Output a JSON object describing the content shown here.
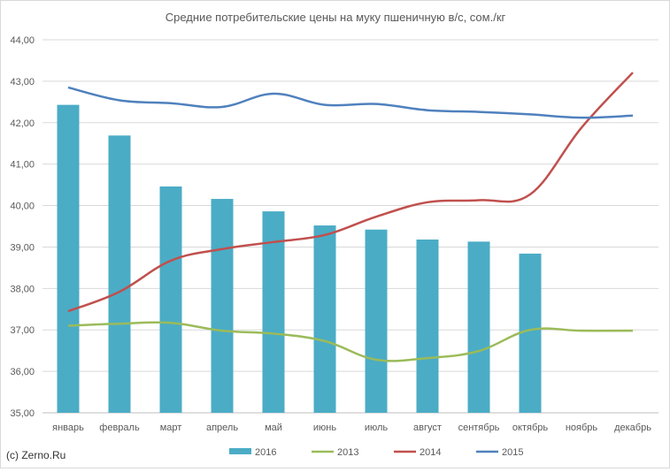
{
  "chart_data": {
    "type": "bar+line",
    "title": "Средние потребительские цены на муку пшеничную в/с, сом./кг",
    "xlabel": "",
    "ylabel": "",
    "categories": [
      "январь",
      "февраль",
      "март",
      "апрель",
      "май",
      "июнь",
      "июль",
      "август",
      "сентябрь",
      "октябрь",
      "ноябрь",
      "декабрь"
    ],
    "ylim": [
      35,
      44
    ],
    "yticks": [
      "35,00",
      "36,00",
      "37,00",
      "38,00",
      "39,00",
      "40,00",
      "41,00",
      "42,00",
      "43,00",
      "44,00"
    ],
    "grid": true,
    "legend_position": "bottom",
    "series": [
      {
        "name": "2016",
        "kind": "bar",
        "color": "#4bacc6",
        "values": [
          42.43,
          41.69,
          40.46,
          40.16,
          39.86,
          39.52,
          39.42,
          39.18,
          39.13,
          38.84,
          null,
          null
        ]
      },
      {
        "name": "2013",
        "kind": "line",
        "color": "#9bbb59",
        "values": [
          37.1,
          37.15,
          37.17,
          36.98,
          36.91,
          36.73,
          36.28,
          36.32,
          36.49,
          37.0,
          36.98,
          36.98
        ]
      },
      {
        "name": "2014",
        "kind": "line",
        "color": "#c0504d",
        "values": [
          37.45,
          37.92,
          38.67,
          38.95,
          39.12,
          39.29,
          39.73,
          40.08,
          40.13,
          40.27,
          41.88,
          43.21
        ]
      },
      {
        "name": "2015",
        "kind": "line",
        "color": "#4f81bd",
        "values": [
          42.85,
          42.54,
          42.47,
          42.38,
          42.7,
          42.43,
          42.45,
          42.3,
          42.26,
          42.2,
          42.12,
          42.17
        ]
      }
    ]
  },
  "copyright": "(c) Zerno.Ru"
}
